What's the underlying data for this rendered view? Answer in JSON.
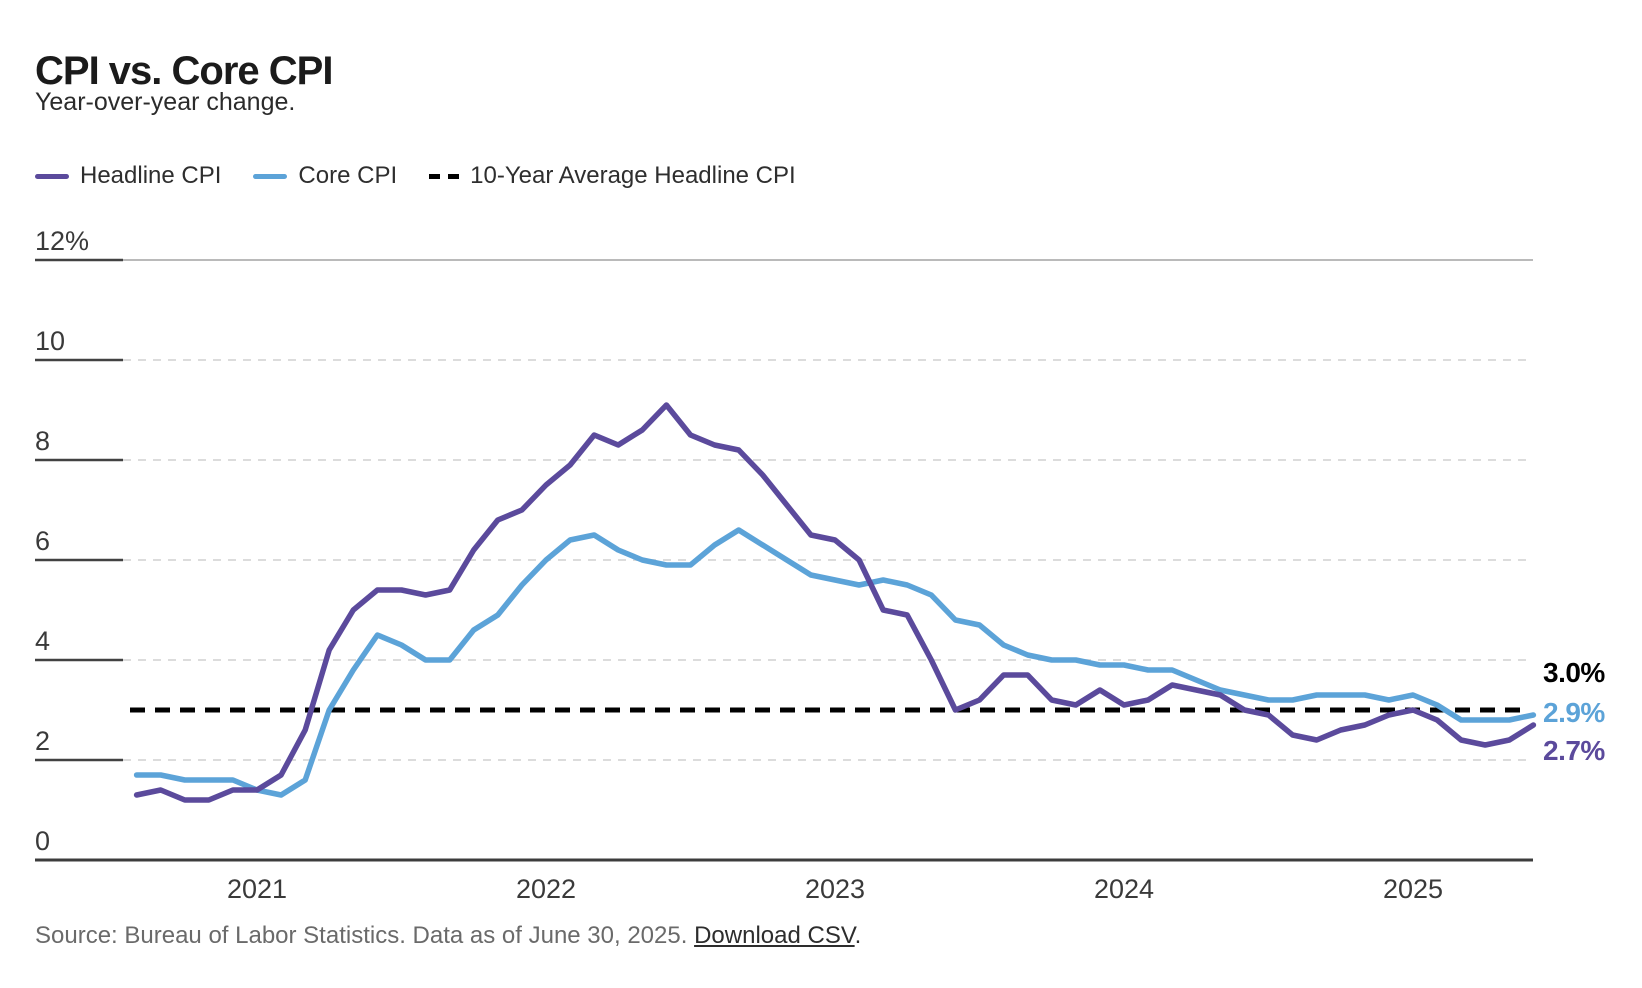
{
  "header": {
    "title": "CPI vs. Core CPI",
    "subtitle": "Year-over-year change."
  },
  "legend": [
    {
      "label": "Headline CPI",
      "color": "#5b4a9c",
      "style": "solid"
    },
    {
      "label": "Core CPI",
      "color": "#5ca3d8",
      "style": "solid"
    },
    {
      "label": "10-Year Average Headline CPI",
      "color": "#000000",
      "style": "dashed"
    }
  ],
  "footer": {
    "source_text": "Source: Bureau of Labor Statistics. Data as of June 30, 2025.",
    "link_label": "Download CSV",
    "after_link": "."
  },
  "chart_data": {
    "type": "line",
    "title": "CPI vs. Core CPI",
    "subtitle": "Year-over-year change.",
    "ylim": [
      0,
      12
    ],
    "grid": true,
    "legend_position": "top-left",
    "y_ticks": [
      {
        "label": "12%",
        "value": 12
      },
      {
        "label": "10",
        "value": 10
      },
      {
        "label": "8",
        "value": 8
      },
      {
        "label": "6",
        "value": 6
      },
      {
        "label": "4",
        "value": 4
      },
      {
        "label": "2",
        "value": 2
      },
      {
        "label": "0",
        "value": 0
      }
    ],
    "x_ticks": [
      "2021",
      "2022",
      "2023",
      "2024",
      "2025"
    ],
    "x": [
      "2020-08",
      "2020-09",
      "2020-10",
      "2020-11",
      "2020-12",
      "2021-01",
      "2021-02",
      "2021-03",
      "2021-04",
      "2021-05",
      "2021-06",
      "2021-07",
      "2021-08",
      "2021-09",
      "2021-10",
      "2021-11",
      "2021-12",
      "2022-01",
      "2022-02",
      "2022-03",
      "2022-04",
      "2022-05",
      "2022-06",
      "2022-07",
      "2022-08",
      "2022-09",
      "2022-10",
      "2022-11",
      "2022-12",
      "2023-01",
      "2023-02",
      "2023-03",
      "2023-04",
      "2023-05",
      "2023-06",
      "2023-07",
      "2023-08",
      "2023-09",
      "2023-10",
      "2023-11",
      "2023-12",
      "2024-01",
      "2024-02",
      "2024-03",
      "2024-04",
      "2024-05",
      "2024-06",
      "2024-07",
      "2024-08",
      "2024-09",
      "2024-10",
      "2024-11",
      "2024-12",
      "2025-01",
      "2025-02",
      "2025-03",
      "2025-04",
      "2025-05",
      "2025-06"
    ],
    "series": [
      {
        "name": "Headline CPI",
        "color": "#5b4a9c",
        "values": [
          1.3,
          1.4,
          1.2,
          1.2,
          1.4,
          1.4,
          1.7,
          2.6,
          4.2,
          5.0,
          5.4,
          5.4,
          5.3,
          5.4,
          6.2,
          6.8,
          7.0,
          7.5,
          7.9,
          8.5,
          8.3,
          8.6,
          9.1,
          8.5,
          8.3,
          8.2,
          7.7,
          7.1,
          6.5,
          6.4,
          6.0,
          5.0,
          4.9,
          4.0,
          3.0,
          3.2,
          3.7,
          3.7,
          3.2,
          3.1,
          3.4,
          3.1,
          3.2,
          3.5,
          3.4,
          3.3,
          3.0,
          2.9,
          2.5,
          2.4,
          2.6,
          2.7,
          2.9,
          3.0,
          2.8,
          2.4,
          2.3,
          2.4,
          2.7
        ]
      },
      {
        "name": "Core CPI",
        "color": "#5ca3d8",
        "values": [
          1.7,
          1.7,
          1.6,
          1.6,
          1.6,
          1.4,
          1.3,
          1.6,
          3.0,
          3.8,
          4.5,
          4.3,
          4.0,
          4.0,
          4.6,
          4.9,
          5.5,
          6.0,
          6.4,
          6.5,
          6.2,
          6.0,
          5.9,
          5.9,
          6.3,
          6.6,
          6.3,
          6.0,
          5.7,
          5.6,
          5.5,
          5.6,
          5.5,
          5.3,
          4.8,
          4.7,
          4.3,
          4.1,
          4.0,
          4.0,
          3.9,
          3.9,
          3.8,
          3.8,
          3.6,
          3.4,
          3.3,
          3.2,
          3.2,
          3.3,
          3.3,
          3.3,
          3.2,
          3.3,
          3.1,
          2.8,
          2.8,
          2.8,
          2.9
        ]
      }
    ],
    "average_line": {
      "label": "10-Year Average Headline CPI",
      "value": 3.0,
      "color": "#000000",
      "style": "dashed"
    },
    "end_labels": {
      "average": {
        "text": "3.0%",
        "color": "#000000"
      },
      "core": {
        "text": "2.9%",
        "color": "#5ca3d8"
      },
      "headline": {
        "text": "2.7%",
        "color": "#5b4a9c"
      }
    }
  }
}
